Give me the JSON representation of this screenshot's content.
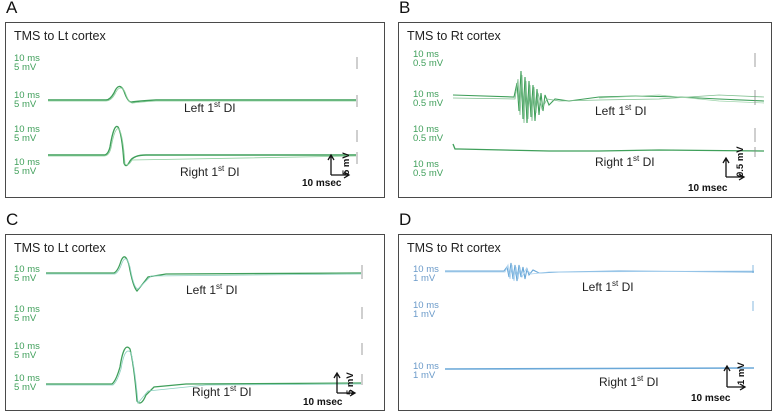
{
  "panels": [
    {
      "letter": "A",
      "title": "TMS to Lt cortex",
      "scales": [
        [
          "10",
          "5"
        ],
        [
          "10",
          "5"
        ],
        [
          "10",
          "5"
        ],
        [
          "10",
          "5"
        ]
      ],
      "units": [
        "ms",
        "mV"
      ],
      "traces": [
        {
          "label_pre": "Left 1",
          "label_sup": "st",
          "label_post": " DI"
        },
        {
          "label_pre": "Right 1",
          "label_sup": "st",
          "label_post": " DI"
        }
      ],
      "time_bar": "10 msec",
      "amp_bar": "5 mV",
      "trace_color": "#3f9f5a"
    },
    {
      "letter": "B",
      "title": "TMS to Rt cortex",
      "scales": [
        [
          "10",
          "0.5"
        ],
        [
          "10",
          "0.5"
        ],
        [
          "10",
          "0.5"
        ],
        [
          "10",
          "0.5"
        ]
      ],
      "units": [
        "ms",
        "mV"
      ],
      "traces": [
        {
          "label_pre": "Left 1",
          "label_sup": "st",
          "label_post": " DI"
        },
        {
          "label_pre": "Right 1",
          "label_sup": "st",
          "label_post": " DI"
        }
      ],
      "time_bar": "10 msec",
      "amp_bar": "0.5 mV",
      "trace_color": "#3f9f5a"
    },
    {
      "letter": "C",
      "title": "TMS to Lt cortex",
      "scales": [
        [
          "10",
          "5"
        ],
        [
          "10",
          "5"
        ],
        [
          "10",
          "5"
        ],
        [
          "10",
          "5"
        ]
      ],
      "units": [
        "ms",
        "mV"
      ],
      "traces": [
        {
          "label_pre": "Left 1",
          "label_sup": "st",
          "label_post": " DI"
        },
        {
          "label_pre": "Right 1",
          "label_sup": "st",
          "label_post": " DI"
        }
      ],
      "time_bar": "10 msec",
      "amp_bar": "5 mV",
      "trace_color": "#3f9f5a"
    },
    {
      "letter": "D",
      "title": "TMS to Rt cortex",
      "scales": [
        [
          "10",
          "1"
        ],
        [
          "10",
          "1"
        ],
        [
          "10",
          "1"
        ]
      ],
      "units": [
        "ms",
        "mV"
      ],
      "traces": [
        {
          "label_pre": "Left 1",
          "label_sup": "st",
          "label_post": " DI"
        },
        {
          "label_pre": "Right 1",
          "label_sup": "st",
          "label_post": " DI"
        }
      ],
      "time_bar": "10 msec",
      "amp_bar": "1 mV",
      "trace_color": "#6aa8d8"
    }
  ]
}
